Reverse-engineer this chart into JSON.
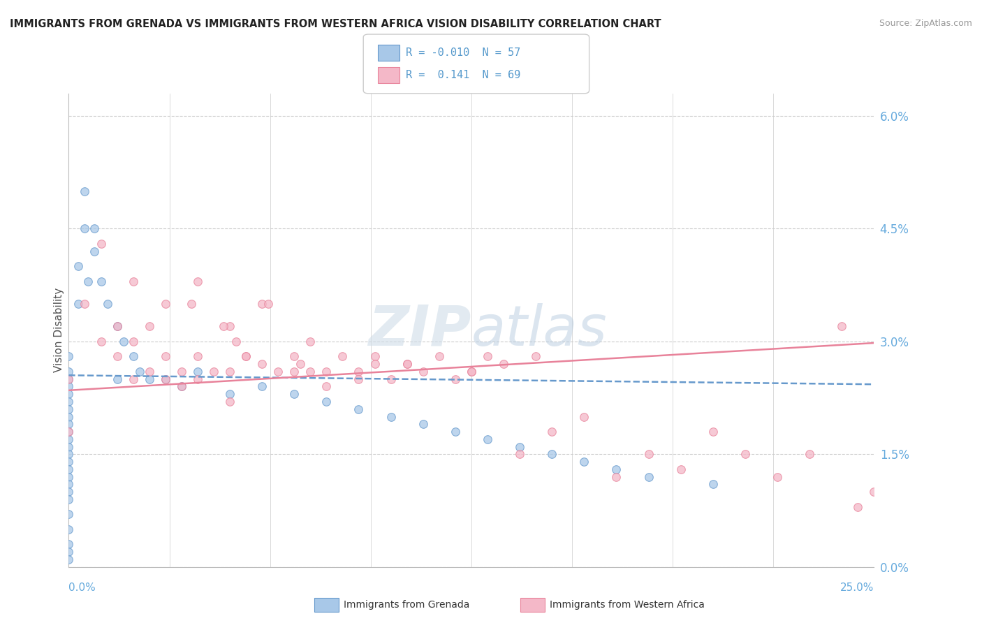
{
  "title": "IMMIGRANTS FROM GRENADA VS IMMIGRANTS FROM WESTERN AFRICA VISION DISABILITY CORRELATION CHART",
  "source": "Source: ZipAtlas.com",
  "ylabel": "Vision Disability",
  "ytick_vals": [
    0.0,
    1.5,
    3.0,
    4.5,
    6.0
  ],
  "xmin": 0.0,
  "xmax": 25.0,
  "ymin": 0.0,
  "ymax": 6.3,
  "color_blue": "#a8c8e8",
  "color_pink": "#f4b8c8",
  "color_blue_line": "#6699cc",
  "color_pink_line": "#e8829a",
  "color_blue_text": "#5599cc",
  "color_tick_text": "#66aadd",
  "watermark_color": "#d0dde8",
  "dot_alpha": 0.75,
  "dot_size": 70,
  "grenada_x": [
    0.0,
    0.0,
    0.0,
    0.0,
    0.0,
    0.0,
    0.0,
    0.0,
    0.0,
    0.0,
    0.0,
    0.0,
    0.0,
    0.0,
    0.0,
    0.0,
    0.0,
    0.0,
    0.0,
    0.0,
    0.0,
    0.0,
    0.0,
    0.0,
    0.5,
    0.5,
    0.8,
    1.0,
    1.2,
    1.5,
    1.7,
    2.0,
    2.2,
    2.5,
    3.0,
    3.5,
    4.0,
    5.0,
    6.0,
    7.0,
    8.0,
    9.0,
    10.0,
    11.0,
    12.0,
    13.0,
    14.0,
    15.0,
    16.0,
    17.0,
    18.0,
    20.0,
    0.3,
    0.3,
    0.6,
    0.8,
    1.5
  ],
  "grenada_y": [
    2.8,
    2.6,
    2.5,
    2.4,
    2.3,
    2.2,
    2.1,
    2.0,
    1.9,
    1.8,
    1.7,
    1.6,
    1.5,
    1.4,
    1.3,
    1.2,
    1.1,
    1.0,
    0.9,
    0.7,
    0.5,
    0.3,
    0.2,
    0.1,
    5.0,
    4.5,
    4.2,
    3.8,
    3.5,
    3.2,
    3.0,
    2.8,
    2.6,
    2.5,
    2.5,
    2.4,
    2.6,
    2.3,
    2.4,
    2.3,
    2.2,
    2.1,
    2.0,
    1.9,
    1.8,
    1.7,
    1.6,
    1.5,
    1.4,
    1.3,
    1.2,
    1.1,
    4.0,
    3.5,
    3.8,
    4.5,
    2.5
  ],
  "w_africa_x": [
    0.0,
    0.0,
    0.5,
    1.0,
    1.5,
    1.5,
    2.0,
    2.0,
    2.5,
    2.5,
    3.0,
    3.0,
    3.5,
    3.5,
    4.0,
    4.0,
    4.5,
    5.0,
    5.0,
    5.5,
    6.0,
    6.5,
    7.0,
    7.0,
    7.5,
    8.0,
    8.5,
    9.0,
    9.5,
    10.0,
    10.5,
    11.0,
    11.5,
    12.0,
    12.5,
    13.0,
    13.5,
    14.0,
    15.0,
    16.0,
    17.0,
    18.0,
    19.0,
    20.0,
    21.0,
    22.0,
    23.0,
    24.0,
    24.5,
    25.0,
    1.0,
    2.0,
    3.0,
    4.0,
    5.0,
    6.0,
    7.5,
    9.5,
    5.5,
    4.8,
    3.8,
    6.2,
    5.2,
    7.2,
    8.0,
    9.0,
    10.5,
    12.5,
    14.5
  ],
  "w_africa_y": [
    2.5,
    1.8,
    3.5,
    3.0,
    3.2,
    2.8,
    3.0,
    2.5,
    3.2,
    2.6,
    2.8,
    2.5,
    2.6,
    2.4,
    2.8,
    2.5,
    2.6,
    2.6,
    2.2,
    2.8,
    2.7,
    2.6,
    2.8,
    2.6,
    2.6,
    2.4,
    2.8,
    2.6,
    2.8,
    2.5,
    2.7,
    2.6,
    2.8,
    2.5,
    2.6,
    2.8,
    2.7,
    1.5,
    1.8,
    2.0,
    1.2,
    1.5,
    1.3,
    1.8,
    1.5,
    1.2,
    1.5,
    3.2,
    0.8,
    1.0,
    4.3,
    3.8,
    3.5,
    3.8,
    3.2,
    3.5,
    3.0,
    2.7,
    2.8,
    3.2,
    3.5,
    3.5,
    3.0,
    2.7,
    2.6,
    2.5,
    2.7,
    2.6,
    2.8
  ],
  "grenada_line_start_y": 2.55,
  "grenada_line_end_y": 2.43,
  "wafrica_line_start_y": 2.35,
  "wafrica_line_end_y": 2.98
}
